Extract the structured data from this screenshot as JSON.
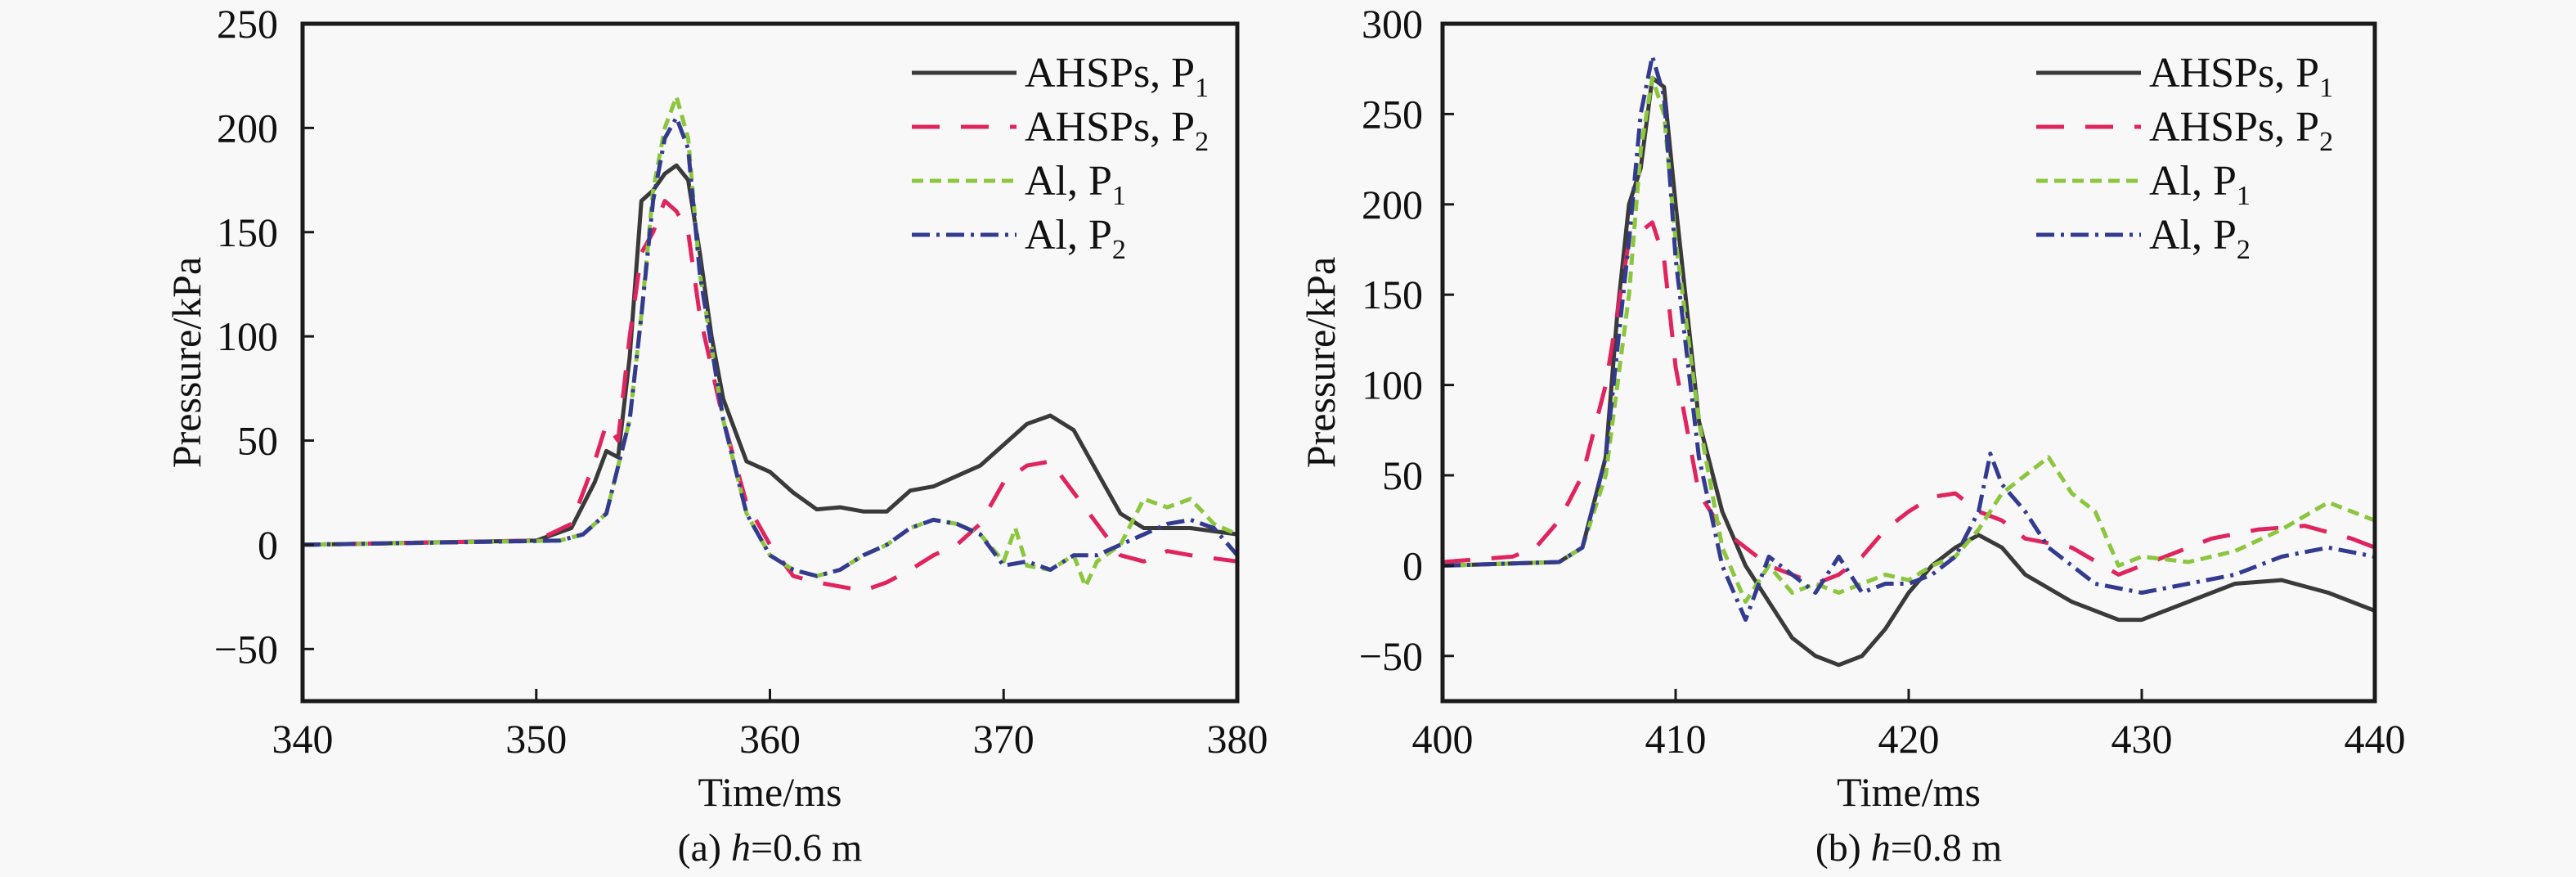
{
  "background": "#f8f8f8",
  "chart_data": [
    {
      "type": "line",
      "caption": {
        "prefix": "(a) ",
        "var": "h",
        "value": "=0.6 m"
      },
      "xlabel": "Time/ms",
      "ylabel": "Pressure/kPa",
      "xlim": [
        340,
        380
      ],
      "ylim": [
        -75,
        250
      ],
      "xticks": [
        340,
        350,
        360,
        370,
        380
      ],
      "yticks": [
        -50,
        0,
        50,
        100,
        150,
        200,
        250
      ],
      "grid": false,
      "legend_position": "top-right",
      "series": [
        {
          "name": "AHSPs, P1",
          "color": "#3a3a3a",
          "style": "solid",
          "x": [
            340,
            350,
            351.5,
            352.5,
            353,
            353.5,
            354,
            354.5,
            355,
            355.5,
            356,
            356.5,
            357,
            357.5,
            358,
            359,
            360,
            361,
            362,
            363,
            364,
            365,
            366,
            367,
            368,
            369,
            370,
            371,
            372,
            373,
            374,
            375,
            376,
            378,
            380
          ],
          "y": [
            0,
            2,
            8,
            30,
            45,
            42,
            90,
            165,
            170,
            178,
            182,
            175,
            140,
            100,
            70,
            40,
            35,
            25,
            17,
            18,
            16,
            16,
            26,
            28,
            33,
            38,
            48,
            58,
            62,
            55,
            35,
            15,
            8,
            8,
            5
          ]
        },
        {
          "name": "AHSPs, P2",
          "color": "#e0245e",
          "style": "dash",
          "x": [
            340,
            350,
            351.5,
            352.5,
            353,
            353.5,
            354,
            354.5,
            355,
            355.5,
            356,
            356.5,
            357,
            358,
            359,
            360,
            361,
            362,
            363,
            364,
            365,
            366,
            367,
            368,
            369,
            370,
            371,
            372,
            373,
            374,
            375,
            376,
            377,
            378,
            380
          ],
          "y": [
            0,
            2,
            10,
            40,
            58,
            50,
            100,
            140,
            150,
            165,
            160,
            150,
            110,
            60,
            20,
            0,
            -15,
            -18,
            -20,
            -22,
            -18,
            -12,
            -5,
            0,
            10,
            30,
            38,
            40,
            25,
            10,
            -5,
            -8,
            -3,
            -5,
            -8
          ]
        },
        {
          "name": "Al, P1",
          "color": "#8cc63f",
          "style": "shortdash",
          "x": [
            340,
            351,
            352,
            353,
            354,
            354.5,
            355,
            355.5,
            356,
            356.5,
            357,
            358,
            359,
            360,
            361,
            362,
            363,
            364,
            365,
            366,
            367,
            368,
            369,
            370,
            370.5,
            371,
            372,
            373,
            373.5,
            374,
            375,
            376,
            377,
            378,
            379,
            380
          ],
          "y": [
            0,
            2,
            5,
            15,
            60,
            110,
            170,
            200,
            215,
            195,
            130,
            60,
            15,
            -5,
            -12,
            -15,
            -12,
            -5,
            0,
            8,
            12,
            10,
            5,
            -8,
            8,
            -10,
            -12,
            -5,
            -20,
            -8,
            0,
            22,
            18,
            22,
            10,
            5
          ]
        },
        {
          "name": "Al, P2",
          "color": "#333b8f",
          "style": "dashdot",
          "x": [
            340,
            351,
            352,
            353,
            354,
            354.5,
            355,
            355.5,
            356,
            356.5,
            357,
            358,
            359,
            360,
            361,
            362,
            363,
            364,
            365,
            366,
            367,
            368,
            369,
            370,
            371,
            372,
            373,
            374,
            375,
            376,
            377,
            378,
            379,
            380
          ],
          "y": [
            0,
            2,
            5,
            15,
            60,
            110,
            165,
            195,
            205,
            190,
            130,
            60,
            15,
            -5,
            -12,
            -15,
            -12,
            -5,
            0,
            8,
            12,
            10,
            5,
            -10,
            -8,
            -12,
            -5,
            -5,
            0,
            5,
            10,
            12,
            8,
            -5
          ]
        }
      ]
    },
    {
      "type": "line",
      "caption": {
        "prefix": "(b) ",
        "var": "h",
        "value": "=0.8 m"
      },
      "xlabel": "Time/ms",
      "ylabel": "Pressure/kPa",
      "xlim": [
        400,
        440
      ],
      "ylim": [
        -75,
        300
      ],
      "xticks": [
        400,
        410,
        420,
        430,
        440
      ],
      "yticks": [
        -50,
        0,
        50,
        100,
        150,
        200,
        250,
        300
      ],
      "grid": false,
      "legend_position": "top-right",
      "series": [
        {
          "name": "AHSPs, P1",
          "color": "#3a3a3a",
          "style": "solid",
          "x": [
            400,
            405,
            406,
            407,
            407.5,
            408,
            408.5,
            409,
            409.5,
            410,
            410.5,
            411,
            412,
            413,
            414,
            415,
            416,
            417,
            418,
            419,
            420,
            421,
            422,
            423,
            424,
            425,
            427,
            429,
            430,
            432,
            434,
            436,
            438,
            440
          ],
          "y": [
            0,
            2,
            10,
            60,
            140,
            200,
            220,
            270,
            265,
            200,
            140,
            80,
            30,
            0,
            -20,
            -40,
            -50,
            -55,
            -50,
            -35,
            -15,
            0,
            10,
            17,
            10,
            -5,
            -20,
            -30,
            -30,
            -20,
            -10,
            -8,
            -15,
            -25
          ]
        },
        {
          "name": "AHSPs, P2",
          "color": "#e0245e",
          "style": "dash",
          "x": [
            400,
            403,
            404,
            405,
            406,
            407,
            407.5,
            408,
            408.5,
            409,
            409.5,
            410,
            411,
            412,
            413,
            414,
            415,
            416,
            417,
            418,
            419,
            420,
            421,
            422,
            423,
            424,
            425,
            427,
            429,
            431,
            433,
            435,
            437,
            439,
            440
          ],
          "y": [
            2,
            5,
            10,
            25,
            50,
            100,
            140,
            180,
            185,
            190,
            170,
            110,
            40,
            20,
            10,
            0,
            -5,
            -10,
            -5,
            5,
            20,
            30,
            38,
            40,
            30,
            25,
            15,
            10,
            -5,
            5,
            15,
            20,
            22,
            15,
            10
          ]
        },
        {
          "name": "Al, P1",
          "color": "#8cc63f",
          "style": "shortdash",
          "x": [
            400,
            405,
            406,
            407,
            408,
            408.5,
            409,
            409.5,
            410,
            411,
            412,
            413,
            414,
            415,
            416,
            417,
            418,
            419,
            420,
            421,
            422,
            423,
            424,
            425,
            426,
            427,
            428,
            429,
            430,
            432,
            434,
            436,
            438,
            440
          ],
          "y": [
            0,
            2,
            10,
            50,
            150,
            230,
            270,
            250,
            180,
            80,
            10,
            -20,
            0,
            -15,
            -10,
            -15,
            -10,
            -5,
            -8,
            0,
            5,
            20,
            40,
            50,
            60,
            40,
            30,
            0,
            5,
            2,
            8,
            20,
            35,
            25
          ]
        },
        {
          "name": "Al, P2",
          "color": "#333b8f",
          "style": "dashdot",
          "x": [
            400,
            405,
            406,
            407,
            408,
            408.5,
            409,
            409.5,
            410,
            411,
            412,
            413,
            414,
            415,
            416,
            417,
            418,
            419,
            420,
            421,
            422,
            423,
            423.5,
            424,
            425,
            426,
            428,
            430,
            432,
            434,
            436,
            438,
            440
          ],
          "y": [
            0,
            2,
            10,
            60,
            180,
            250,
            282,
            260,
            170,
            60,
            0,
            -30,
            5,
            -5,
            -15,
            5,
            -15,
            -10,
            -10,
            -5,
            5,
            30,
            62,
            45,
            30,
            10,
            -10,
            -15,
            -10,
            -5,
            5,
            10,
            5
          ]
        }
      ]
    }
  ]
}
